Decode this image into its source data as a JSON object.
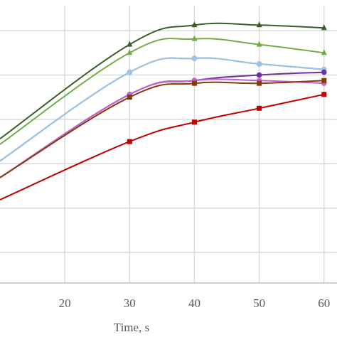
{
  "chart_data": {
    "type": "line",
    "xlabel": "Time,  s",
    "ylabel": "",
    "xlim": [
      10,
      62
    ],
    "ylim": [
      0,
      1
    ],
    "x_ticks": [
      20,
      30,
      40,
      50,
      60
    ],
    "y_gridlines": [
      0.11,
      0.27,
      0.43,
      0.59,
      0.75,
      0.91
    ],
    "grid": true,
    "legend": "none",
    "series": [
      {
        "color": "#3a5e28",
        "marker": "triangle",
        "x": [
          10,
          30,
          40,
          50,
          60
        ],
        "y": [
          0.52,
          0.86,
          0.93,
          0.93,
          0.92
        ]
      },
      {
        "color": "#70ad47",
        "marker": "triangle",
        "x": [
          10,
          30,
          40,
          50,
          60
        ],
        "y": [
          0.5,
          0.83,
          0.88,
          0.86,
          0.83
        ]
      },
      {
        "color": "#2e75b6",
        "marker": "circle",
        "x": [
          10,
          30,
          40,
          50,
          60
        ],
        "y": [
          0.44,
          0.76,
          0.81,
          0.79,
          0.77
        ]
      },
      {
        "color": "#9dc3e6",
        "marker": "circle",
        "x": [
          10,
          30,
          40,
          50,
          60
        ],
        "y": [
          0.44,
          0.76,
          0.81,
          0.79,
          0.77
        ]
      },
      {
        "color": "#7030a0",
        "marker": "circle",
        "x": [
          10,
          30,
          40,
          50,
          60
        ],
        "y": [
          0.38,
          0.68,
          0.73,
          0.75,
          0.76
        ]
      },
      {
        "color": "#c55fc9",
        "marker": "circle",
        "x": [
          10,
          30,
          40,
          50,
          60
        ],
        "y": [
          0.38,
          0.68,
          0.73,
          0.73,
          0.72
        ]
      },
      {
        "color": "#843c0c",
        "marker": "square",
        "x": [
          10,
          30,
          40,
          50,
          60
        ],
        "y": [
          0.38,
          0.67,
          0.72,
          0.72,
          0.73
        ]
      },
      {
        "color": "#c00000",
        "marker": "square",
        "x": [
          10,
          30,
          40,
          50,
          60
        ],
        "y": [
          0.3,
          0.51,
          0.58,
          0.63,
          0.68
        ]
      }
    ]
  }
}
